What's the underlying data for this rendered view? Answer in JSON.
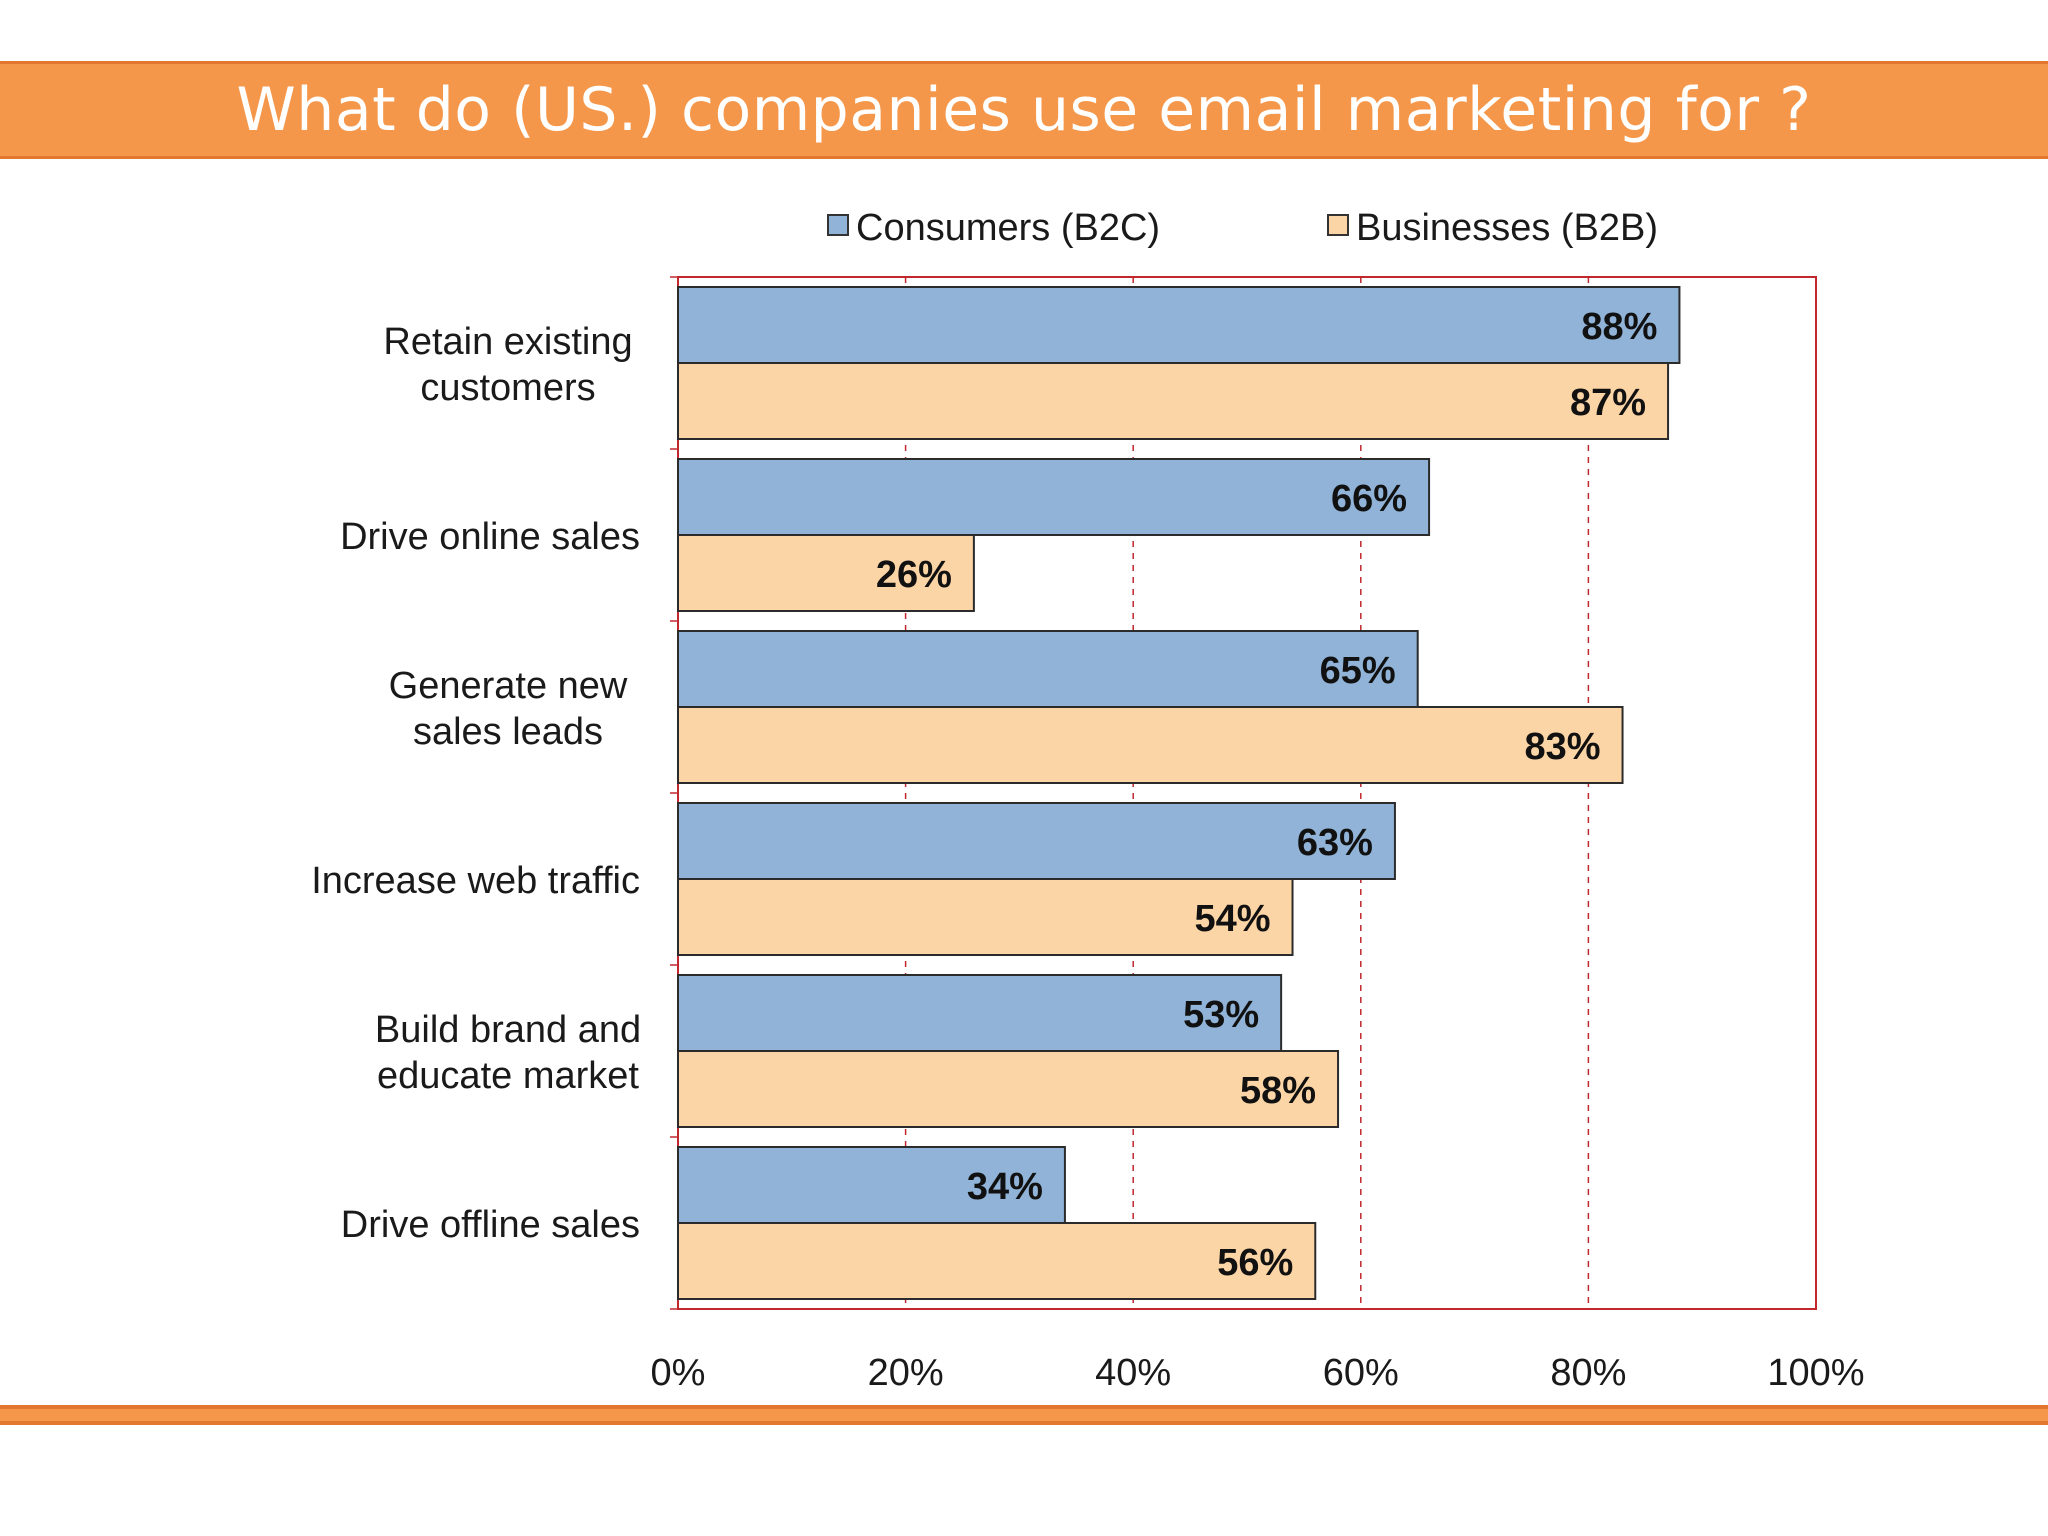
{
  "slide": {
    "title": "What do (US.) companies use email marketing for ?",
    "band_color": "#f5974a",
    "band_border_color": "#e2782f"
  },
  "chart_data": {
    "type": "bar",
    "orientation": "horizontal",
    "categories": [
      [
        "Retain existing",
        "customers"
      ],
      [
        "Drive online sales"
      ],
      [
        "Generate new",
        "sales leads"
      ],
      [
        "Increase web traffic"
      ],
      [
        "Build brand and",
        "educate market"
      ],
      [
        "Drive offline sales"
      ]
    ],
    "series": [
      {
        "name": "Consumers (B2C)",
        "color": "#90b3d7",
        "values": [
          88,
          66,
          65,
          63,
          53,
          34
        ],
        "labels": [
          "88%",
          "66%",
          "65%",
          "63%",
          "53%",
          "34%"
        ]
      },
      {
        "name": "Businesses (B2B)",
        "color": "#fcd5a6",
        "values": [
          87,
          26,
          83,
          54,
          58,
          56
        ],
        "labels": [
          "87%",
          "26%",
          "83%",
          "54%",
          "58%",
          "56%"
        ]
      }
    ],
    "xlim": [
      0,
      100
    ],
    "xticks": [
      0,
      20,
      40,
      60,
      80,
      100
    ],
    "xtick_labels": [
      "0%",
      "20%",
      "40%",
      "60%",
      "80%",
      "100%"
    ],
    "grid": true,
    "legend": "top",
    "frame_color": "#c0282d"
  }
}
